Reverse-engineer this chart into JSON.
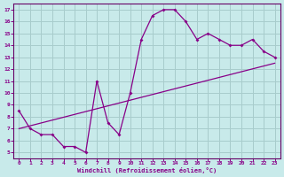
{
  "background_color": "#c8eaea",
  "line_color": "#880088",
  "grid_color": "#a8cccc",
  "spine_color": "#660066",
  "xlim": [
    -0.5,
    23.5
  ],
  "ylim": [
    4.5,
    17.5
  ],
  "yticks": [
    5,
    6,
    7,
    8,
    9,
    10,
    11,
    12,
    13,
    14,
    15,
    16,
    17
  ],
  "xticks": [
    0,
    1,
    2,
    3,
    4,
    5,
    6,
    7,
    8,
    9,
    10,
    11,
    12,
    13,
    14,
    15,
    16,
    17,
    18,
    19,
    20,
    21,
    22,
    23
  ],
  "xlabel": "Windchill (Refroidissement éolien,°C)",
  "line1_x": [
    0,
    1,
    2,
    3,
    4,
    5,
    6,
    7,
    8,
    9,
    10,
    11,
    12,
    13,
    14,
    15,
    16,
    17,
    18,
    19,
    20,
    21,
    22,
    23
  ],
  "line1_y": [
    8.5,
    7.0,
    6.5,
    6.5,
    5.5,
    5.5,
    5.0,
    11.0,
    7.5,
    6.5,
    10.0,
    14.5,
    16.5,
    17.0,
    17.0,
    16.0,
    14.5,
    15.0,
    14.5,
    14.0,
    14.0,
    14.5,
    13.5,
    13.0
  ],
  "line2_x": [
    0,
    23
  ],
  "line2_y": [
    7.0,
    12.5
  ]
}
